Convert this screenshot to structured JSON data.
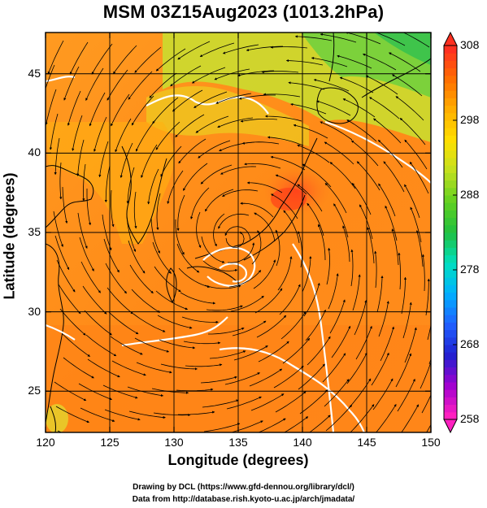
{
  "title": "MSM 03Z15Aug2023 (1013.2hPa)",
  "x_axis": {
    "label": "Longitude (degrees)",
    "ticks": [
      "120",
      "125",
      "130",
      "135",
      "140",
      "145",
      "150"
    ]
  },
  "y_axis": {
    "label": "Latitude  (degrees)",
    "ticks": [
      "25",
      "30",
      "35",
      "40",
      "45"
    ]
  },
  "colorbar": {
    "ticks": [
      "308",
      "298",
      "288",
      "278",
      "268",
      "258"
    ],
    "min": 258,
    "max": 308,
    "colors": [
      "#ff20c0",
      "#a000d0",
      "#2020d0",
      "#2060ff",
      "#00b0ff",
      "#00e0c0",
      "#20c040",
      "#60d020",
      "#c0e020",
      "#ffe000",
      "#ffb000",
      "#ff7000",
      "#ff3020"
    ]
  },
  "map": {
    "lon_range": [
      120,
      150
    ],
    "lat_range": [
      22.4,
      47.6
    ],
    "grid_lons": [
      125,
      130,
      135,
      140,
      145
    ],
    "grid_lats": [
      25,
      30,
      35,
      40,
      45
    ]
  },
  "credits": {
    "line1": "Drawing by DCL (https://www.gfd-dennou.org/library/dcl/)",
    "line2": "Data from http://database.rish.kyoto-u.ac.jp/arch/jmadata/"
  }
}
